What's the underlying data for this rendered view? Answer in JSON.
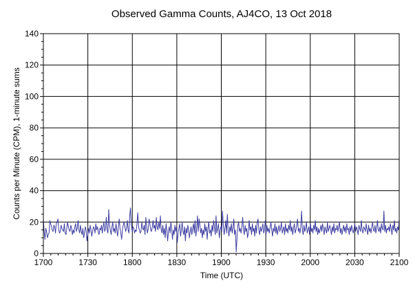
{
  "chart_data": {
    "type": "line",
    "title": "Observed Gamma Counts, AJ4CO, 13 Oct 2018",
    "xlabel": "Time (UTC)",
    "ylabel": "Counts per Minute (CPM), 1-minute sums",
    "xlim": [
      "1700",
      "2100"
    ],
    "ylim": [
      0,
      140
    ],
    "x_ticks": [
      "1700",
      "1730",
      "1800",
      "1830",
      "1900",
      "1930",
      "2000",
      "2030",
      "2100"
    ],
    "y_ticks": [
      0,
      20,
      40,
      60,
      80,
      100,
      120,
      140
    ],
    "grid": true,
    "legend": "none",
    "line_color": "#3b3ba0",
    "series": [
      {
        "x_start": "1700",
        "x_end": "2100",
        "interval": "1 minute",
        "values": [
          22,
          14,
          9,
          16,
          14,
          10,
          12,
          13,
          21,
          19,
          17,
          15,
          14,
          18,
          17,
          13,
          19,
          20,
          22,
          15,
          13,
          14,
          18,
          16,
          15,
          14,
          19,
          13,
          12,
          16,
          20,
          17,
          15,
          14,
          18,
          16,
          12,
          15,
          13,
          17,
          19,
          14,
          16,
          21,
          15,
          13,
          18,
          14,
          12,
          16,
          10,
          13,
          17,
          15,
          8,
          12,
          16,
          13,
          18,
          15,
          11,
          14,
          17,
          16,
          13,
          19,
          15,
          17,
          14,
          12,
          16,
          15,
          18,
          13,
          17,
          20,
          14,
          16,
          23,
          15,
          13,
          28,
          18,
          15,
          12,
          17,
          20,
          14,
          16,
          13,
          19,
          15,
          11,
          17,
          22,
          16,
          13,
          9,
          15,
          18,
          20,
          17,
          14,
          16,
          21,
          15,
          13,
          24,
          29,
          18,
          14,
          17,
          16,
          13,
          15,
          14,
          19,
          26,
          17,
          15,
          13,
          14,
          20,
          16,
          15,
          18,
          12,
          23,
          17,
          13,
          16,
          22,
          19,
          15,
          14,
          17,
          21,
          16,
          18,
          14,
          23,
          17,
          15,
          20,
          16,
          24,
          15,
          13,
          18,
          12,
          16,
          10,
          19,
          15,
          8,
          14,
          17,
          13,
          20,
          16,
          9,
          15,
          12,
          18,
          14,
          17,
          7,
          13,
          16,
          19,
          11,
          15,
          20,
          14,
          12,
          17,
          8,
          16,
          13,
          18,
          15,
          10,
          14,
          17,
          12,
          16,
          19,
          13,
          21,
          11,
          16,
          24,
          14,
          22,
          18,
          13,
          16,
          10,
          15,
          12,
          19,
          14,
          17,
          9,
          16,
          20,
          13,
          15,
          11,
          18,
          14,
          21,
          17,
          12,
          24,
          13,
          16,
          19,
          10,
          15,
          17,
          14,
          27,
          18,
          12,
          16,
          21,
          13,
          25,
          15,
          11,
          17,
          14,
          19,
          13,
          16,
          22,
          12,
          15,
          1,
          10,
          18,
          20,
          14,
          16,
          13,
          17,
          23,
          15,
          12,
          18,
          14,
          16,
          10,
          13,
          21,
          15,
          17,
          12,
          19,
          14,
          16,
          11,
          18,
          13,
          20,
          22,
          15,
          12,
          17,
          14,
          16,
          19,
          13,
          15,
          21,
          12,
          18,
          14,
          16,
          13,
          17,
          20,
          15,
          11,
          16,
          14,
          19,
          13,
          17,
          12,
          15,
          18,
          14,
          16,
          20,
          13,
          15,
          17,
          12,
          19,
          14,
          16,
          13,
          18,
          15,
          21,
          14,
          17,
          12,
          16,
          19,
          13,
          15,
          18,
          22,
          14,
          16,
          13,
          17,
          27,
          15,
          12,
          18,
          14,
          16,
          20,
          13,
          15,
          17,
          12,
          19,
          14,
          16,
          13,
          18,
          15,
          21,
          14,
          17,
          12,
          16,
          13,
          15,
          18,
          14,
          19,
          16,
          12,
          17,
          15,
          13,
          20,
          14,
          16,
          18,
          15,
          12,
          17,
          14,
          19,
          13,
          16,
          15,
          18,
          14,
          17,
          20,
          13,
          16,
          12,
          15,
          18,
          14,
          17,
          13,
          19,
          15,
          16,
          12,
          17,
          14,
          18,
          15,
          13,
          16,
          19,
          14,
          17,
          15,
          12,
          18,
          16,
          14,
          21,
          15,
          13,
          17,
          16,
          14,
          19,
          15,
          12,
          18,
          14,
          16,
          13,
          17,
          20,
          15,
          14,
          18,
          13,
          16,
          21,
          15,
          14,
          17,
          13,
          19,
          16,
          15,
          27,
          14,
          18,
          13,
          16,
          15,
          17,
          14,
          19,
          16,
          12,
          18,
          15,
          21,
          14,
          16,
          13,
          17,
          15,
          22
        ]
      }
    ]
  }
}
